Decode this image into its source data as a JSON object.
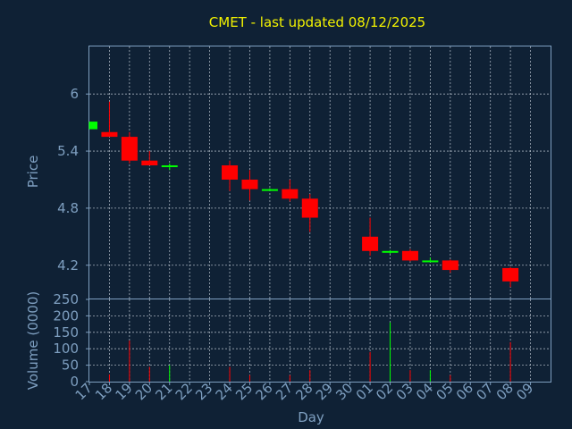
{
  "chart_data": {
    "type": "candlestick",
    "title": "CMET - last updated 08/12/2025",
    "xlabel": "Day",
    "price_ylabel": "Price",
    "volume_ylabel": "Volume (0000)",
    "x_ticks": [
      "17",
      "18",
      "19",
      "20",
      "21",
      "22",
      "23",
      "24",
      "25",
      "26",
      "27",
      "28",
      "29",
      "30",
      "01",
      "02",
      "03",
      "04",
      "05",
      "06",
      "07",
      "08",
      "09"
    ],
    "price_ticks": [
      "4.2",
      "4.8",
      "5.4",
      "6"
    ],
    "volume_ticks": [
      "0",
      "50",
      "100",
      "150",
      "200",
      "250"
    ],
    "price_range": [
      3.85,
      6.5
    ],
    "volume_range": [
      0,
      250
    ],
    "grid": true,
    "colors": {
      "up": "#00ff00",
      "down": "#ff0000",
      "background": "#0f2135",
      "axis": "#7e9fc0",
      "title": "#f2f200"
    },
    "candles": [
      {
        "day": "17",
        "open": 5.63,
        "high": 5.71,
        "low": 5.63,
        "close": 5.71,
        "volume": 0
      },
      {
        "day": "18",
        "open": 5.6,
        "high": 5.92,
        "low": 5.55,
        "close": 5.55,
        "volume": 22
      },
      {
        "day": "19",
        "open": 5.55,
        "high": 5.6,
        "low": 5.27,
        "close": 5.3,
        "volume": 125
      },
      {
        "day": "20",
        "open": 5.3,
        "high": 5.4,
        "low": 5.25,
        "close": 5.25,
        "volume": 45
      },
      {
        "day": "21",
        "open": 5.24,
        "high": 5.27,
        "low": 5.2,
        "close": 5.25,
        "volume": 50
      },
      {
        "day": "24",
        "open": 5.25,
        "high": 5.3,
        "low": 4.98,
        "close": 5.1,
        "volume": 45
      },
      {
        "day": "25",
        "open": 5.1,
        "high": 5.2,
        "low": 4.88,
        "close": 5.0,
        "volume": 20
      },
      {
        "day": "26",
        "open": 4.99,
        "high": 5.01,
        "low": 4.99,
        "close": 5.0,
        "volume": 0
      },
      {
        "day": "27",
        "open": 5.0,
        "high": 5.1,
        "low": 4.87,
        "close": 4.9,
        "volume": 20
      },
      {
        "day": "28",
        "open": 4.9,
        "high": 4.95,
        "low": 4.55,
        "close": 4.7,
        "volume": 35
      },
      {
        "day": "01",
        "open": 4.5,
        "high": 4.7,
        "low": 4.3,
        "close": 4.35,
        "volume": 90
      },
      {
        "day": "02",
        "open": 4.34,
        "high": 4.36,
        "low": 4.32,
        "close": 4.35,
        "volume": 180
      },
      {
        "day": "03",
        "open": 4.35,
        "high": 4.37,
        "low": 4.24,
        "close": 4.25,
        "volume": 35
      },
      {
        "day": "04",
        "open": 4.24,
        "high": 4.28,
        "low": 4.24,
        "close": 4.25,
        "volume": 35
      },
      {
        "day": "05",
        "open": 4.25,
        "high": 4.26,
        "low": 4.12,
        "close": 4.15,
        "volume": 20
      },
      {
        "day": "08",
        "open": 4.17,
        "high": 4.18,
        "low": 3.97,
        "close": 4.03,
        "volume": 120
      }
    ]
  }
}
